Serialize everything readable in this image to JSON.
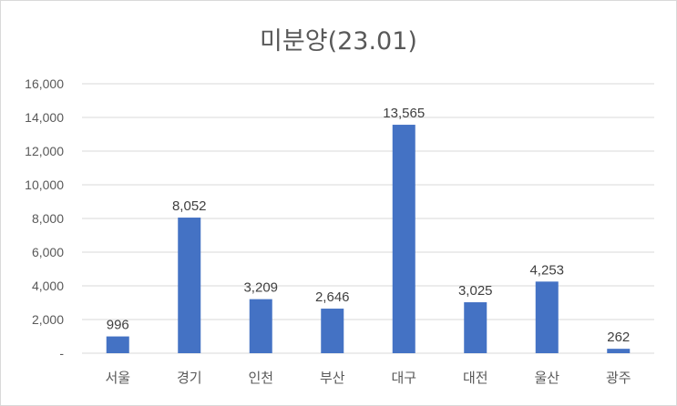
{
  "chart_data": {
    "type": "bar",
    "title": "미분양(23.01)",
    "categories": [
      "서울",
      "경기",
      "인천",
      "부산",
      "대구",
      "대전",
      "울산",
      "광주"
    ],
    "values": [
      996,
      8052,
      3209,
      2646,
      13565,
      3025,
      4253,
      262
    ],
    "data_labels": [
      "996",
      "8,052",
      "3,209",
      "2,646",
      "13,565",
      "3,025",
      "4,253",
      "262"
    ],
    "y_ticks": [
      "-",
      "2,000",
      "4,000",
      "6,000",
      "8,000",
      "10,000",
      "12,000",
      "14,000",
      "16,000"
    ],
    "ylim": [
      0,
      16000
    ],
    "grid": true,
    "legend": "none",
    "bar_color": "#4472c4",
    "grid_color": "#d9d9d9"
  }
}
